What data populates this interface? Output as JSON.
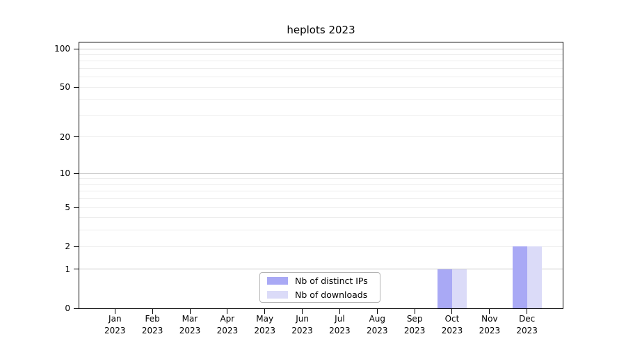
{
  "title": "heplots 2023",
  "colors": {
    "background": "#ffffff",
    "axis": "#000000",
    "major_grid": "#c9c9c9",
    "minor_grid": "#ededed",
    "legend_border": "#b3b3b3",
    "text": "#000000"
  },
  "legend": {
    "items": [
      {
        "label": "Nb of distinct IPs",
        "color": "#a9a9f5"
      },
      {
        "label": "Nb of downloads",
        "color": "#dbdbf8"
      }
    ]
  },
  "chart_data": {
    "type": "bar",
    "title": "heplots 2023",
    "categories": [
      "Jan",
      "Feb",
      "Mar",
      "Apr",
      "May",
      "Jun",
      "Jul",
      "Aug",
      "Sep",
      "Oct",
      "Nov",
      "Dec"
    ],
    "year": "2023",
    "series": [
      {
        "name": "Nb of distinct IPs",
        "color": "#a9a9f5",
        "values": [
          0,
          0,
          0,
          0,
          0,
          0,
          0,
          0,
          0,
          1,
          0,
          2
        ]
      },
      {
        "name": "Nb of downloads",
        "color": "#dbdbf8",
        "values": [
          0,
          0,
          0,
          0,
          0,
          0,
          0,
          0,
          0,
          1,
          0,
          2
        ]
      }
    ],
    "yscale": "log10(1+x)",
    "ylim": [
      0,
      112
    ],
    "yticks": [
      0,
      1,
      2,
      5,
      10,
      20,
      50,
      100
    ],
    "major_gridlines": [
      1,
      10,
      100
    ],
    "minor_gridlines": [
      2,
      3,
      4,
      5,
      6,
      7,
      8,
      9,
      20,
      30,
      40,
      50,
      60,
      70,
      80,
      90
    ],
    "xlabel": "",
    "ylabel": "",
    "grid": true,
    "legend_position": "lower center"
  }
}
